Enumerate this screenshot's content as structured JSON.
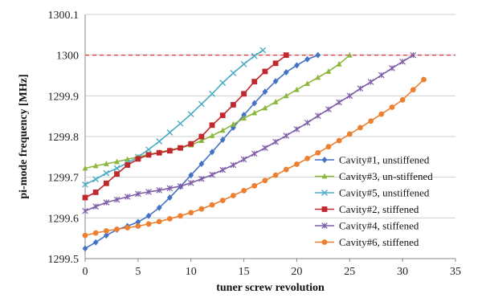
{
  "chart_data": {
    "type": "line",
    "xlabel": "tuner screw revolution",
    "ylabel": "pi-mode frequency [MHz]",
    "xlim": [
      0,
      35
    ],
    "ylim": [
      1299.5,
      1300.1
    ],
    "xticks": [
      0,
      5,
      10,
      15,
      20,
      25,
      30,
      35
    ],
    "yticks": [
      1299.5,
      1299.6,
      1299.7,
      1299.8,
      1299.9,
      1300,
      1300.1
    ],
    "ytick_labels": [
      "1299.5",
      "1299.6",
      "1299.7",
      "1299.8",
      "1299.9",
      "1300",
      "1300.1"
    ],
    "grid": "horizontal",
    "legend_position": "right",
    "reference_line": {
      "y": 1300,
      "style": "dashed",
      "color": "#e02020"
    },
    "series": [
      {
        "name": "Cavity#1, unstiffened",
        "color": "#4472c4",
        "marker": "diamond",
        "x": [
          0,
          1,
          2,
          3,
          4,
          5,
          6,
          7,
          8,
          9,
          10,
          11,
          12,
          13,
          14,
          15,
          16,
          17,
          18,
          19,
          20,
          21,
          22
        ],
        "y": [
          1299.525,
          1299.54,
          1299.557,
          1299.571,
          1299.58,
          1299.59,
          1299.605,
          1299.625,
          1299.65,
          1299.677,
          1299.705,
          1299.733,
          1299.762,
          1299.792,
          1299.822,
          1299.853,
          1299.882,
          1299.91,
          1299.936,
          1299.958,
          1299.975,
          1299.99,
          1300.0
        ]
      },
      {
        "name": "Cavity#3, un-stiffened",
        "color": "#8db63c",
        "marker": "triangle",
        "x": [
          0,
          1,
          2,
          3,
          4,
          5,
          6,
          7,
          8,
          9,
          10,
          11,
          12,
          13,
          14,
          15,
          16,
          17,
          18,
          19,
          20,
          21,
          22,
          23,
          24,
          25
        ],
        "y": [
          1299.722,
          1299.728,
          1299.733,
          1299.738,
          1299.744,
          1299.75,
          1299.756,
          1299.761,
          1299.767,
          1299.772,
          1299.779,
          1299.79,
          1299.802,
          1299.815,
          1299.83,
          1299.845,
          1299.858,
          1299.87,
          1299.885,
          1299.9,
          1299.915,
          1299.93,
          1299.945,
          1299.96,
          1299.978,
          1300.0
        ]
      },
      {
        "name": "Cavity#5, unstiffened",
        "color": "#4bacc6",
        "marker": "x",
        "x": [
          0,
          1,
          2,
          3,
          4,
          5,
          6,
          7,
          8,
          9,
          10,
          11,
          12,
          13,
          14,
          15,
          16,
          16.8
        ],
        "y": [
          1299.682,
          1299.695,
          1299.71,
          1299.722,
          1299.735,
          1299.75,
          1299.768,
          1299.788,
          1299.81,
          1299.832,
          1299.855,
          1299.88,
          1299.905,
          1299.932,
          1299.956,
          1299.978,
          1299.998,
          1300.012
        ]
      },
      {
        "name": "Cavity#2, stiffened",
        "color": "#c0282d",
        "marker": "square",
        "x": [
          0,
          1,
          2,
          3,
          4,
          5,
          6,
          7,
          8,
          9,
          10,
          11,
          12,
          13,
          14,
          15,
          16,
          17,
          18,
          19
        ],
        "y": [
          1299.65,
          1299.663,
          1299.685,
          1299.708,
          1299.73,
          1299.745,
          1299.755,
          1299.76,
          1299.765,
          1299.772,
          1299.782,
          1299.8,
          1299.828,
          1299.852,
          1299.878,
          1299.905,
          1299.935,
          1299.96,
          1299.98,
          1300.0
        ]
      },
      {
        "name": "Cavity#4, stiffened",
        "color": "#7e5ea8",
        "marker": "cross",
        "x": [
          0,
          1,
          2,
          3,
          4,
          5,
          6,
          7,
          8,
          9,
          10,
          11,
          12,
          13,
          14,
          15,
          16,
          17,
          18,
          19,
          20,
          21,
          22,
          23,
          24,
          25,
          26,
          27,
          28,
          29,
          30,
          31
        ],
        "y": [
          1299.617,
          1299.628,
          1299.638,
          1299.645,
          1299.652,
          1299.659,
          1299.664,
          1299.668,
          1299.673,
          1299.678,
          1299.686,
          1299.696,
          1299.706,
          1299.718,
          1299.73,
          1299.744,
          1299.758,
          1299.772,
          1299.787,
          1299.802,
          1299.818,
          1299.834,
          1299.851,
          1299.867,
          1299.884,
          1299.9,
          1299.918,
          1299.934,
          1299.951,
          1299.968,
          1299.984,
          1300.0
        ]
      },
      {
        "name": "Cavity#6, stiffened",
        "color": "#ec7f30",
        "marker": "circle",
        "x": [
          0,
          1,
          2,
          3,
          4,
          5,
          6,
          7,
          8,
          9,
          10,
          11,
          12,
          13,
          14,
          15,
          16,
          17,
          18,
          19,
          20,
          21,
          22,
          23,
          24,
          25,
          26,
          27,
          28,
          29,
          30,
          31,
          32
        ],
        "y": [
          1299.557,
          1299.563,
          1299.568,
          1299.572,
          1299.576,
          1299.58,
          1299.585,
          1299.591,
          1299.598,
          1299.605,
          1299.613,
          1299.622,
          1299.632,
          1299.643,
          1299.655,
          1299.667,
          1299.679,
          1299.692,
          1299.705,
          1299.719,
          1299.732,
          1299.746,
          1299.76,
          1299.775,
          1299.79,
          1299.806,
          1299.822,
          1299.838,
          1299.855,
          1299.872,
          1299.89,
          1299.915,
          1299.94
        ]
      }
    ]
  }
}
